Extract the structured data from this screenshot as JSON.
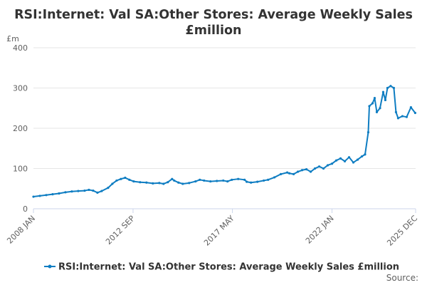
{
  "chart_data": {
    "type": "line",
    "title_lines": [
      "RSI:Internet: Val SA:Other Stores: Average Weekly Sales",
      "£million"
    ],
    "y_unit": "£m",
    "ylim": [
      0,
      400
    ],
    "y_ticks": [
      0,
      100,
      200,
      300,
      400
    ],
    "x_ticks": [
      {
        "label": "2008 JAN",
        "x": 2008.0
      },
      {
        "label": "2012 SEP",
        "x": 2012.67
      },
      {
        "label": "2017 MAY",
        "x": 2017.33
      },
      {
        "label": "2022 JAN",
        "x": 2022.0
      },
      {
        "label": "2025 DEC",
        "x": 2025.92
      }
    ],
    "xlim": [
      2008.0,
      2025.92
    ],
    "legend": "RSI:Internet: Val SA:Other Stores: Average Weekly Sales £million",
    "source": "Source:",
    "series": [
      {
        "name": "RSI:Internet: Val SA:Other Stores: Average Weekly Sales £million",
        "color": "#0e7dc2",
        "points": [
          [
            2008.0,
            30
          ],
          [
            2008.3,
            32
          ],
          [
            2008.6,
            34
          ],
          [
            2008.9,
            36
          ],
          [
            2009.2,
            38
          ],
          [
            2009.5,
            41
          ],
          [
            2009.8,
            43
          ],
          [
            2010.1,
            44
          ],
          [
            2010.4,
            45
          ],
          [
            2010.6,
            47
          ],
          [
            2010.8,
            45
          ],
          [
            2011.0,
            40
          ],
          [
            2011.2,
            44
          ],
          [
            2011.5,
            52
          ],
          [
            2011.7,
            62
          ],
          [
            2011.9,
            70
          ],
          [
            2012.1,
            74
          ],
          [
            2012.3,
            77
          ],
          [
            2012.5,
            72
          ],
          [
            2012.7,
            68
          ],
          [
            2013.0,
            66
          ],
          [
            2013.3,
            65
          ],
          [
            2013.6,
            63
          ],
          [
            2013.9,
            64
          ],
          [
            2014.1,
            62
          ],
          [
            2014.3,
            66
          ],
          [
            2014.5,
            74
          ],
          [
            2014.6,
            70
          ],
          [
            2014.8,
            65
          ],
          [
            2015.0,
            62
          ],
          [
            2015.3,
            64
          ],
          [
            2015.6,
            68
          ],
          [
            2015.8,
            72
          ],
          [
            2016.0,
            70
          ],
          [
            2016.3,
            68
          ],
          [
            2016.6,
            69
          ],
          [
            2016.9,
            70
          ],
          [
            2017.1,
            68
          ],
          [
            2017.3,
            72
          ],
          [
            2017.6,
            74
          ],
          [
            2017.9,
            72
          ],
          [
            2018.0,
            67
          ],
          [
            2018.2,
            65
          ],
          [
            2018.5,
            67
          ],
          [
            2018.8,
            70
          ],
          [
            2019.0,
            72
          ],
          [
            2019.3,
            78
          ],
          [
            2019.6,
            86
          ],
          [
            2019.9,
            90
          ],
          [
            2020.0,
            88
          ],
          [
            2020.2,
            86
          ],
          [
            2020.4,
            92
          ],
          [
            2020.6,
            96
          ],
          [
            2020.8,
            98
          ],
          [
            2021.0,
            92
          ],
          [
            2021.2,
            100
          ],
          [
            2021.4,
            105
          ],
          [
            2021.6,
            100
          ],
          [
            2021.8,
            108
          ],
          [
            2022.0,
            112
          ],
          [
            2022.2,
            120
          ],
          [
            2022.4,
            125
          ],
          [
            2022.6,
            118
          ],
          [
            2022.8,
            128
          ],
          [
            2023.0,
            115
          ],
          [
            2023.2,
            122
          ],
          [
            2023.4,
            130
          ],
          [
            2023.55,
            135
          ],
          [
            2023.7,
            190
          ],
          [
            2023.75,
            255
          ],
          [
            2023.9,
            262
          ],
          [
            2024.0,
            275
          ],
          [
            2024.1,
            240
          ],
          [
            2024.25,
            250
          ],
          [
            2024.4,
            290
          ],
          [
            2024.5,
            270
          ],
          [
            2024.6,
            300
          ],
          [
            2024.75,
            305
          ],
          [
            2024.9,
            300
          ],
          [
            2025.0,
            240
          ],
          [
            2025.1,
            225
          ],
          [
            2025.3,
            230
          ],
          [
            2025.5,
            228
          ],
          [
            2025.7,
            252
          ],
          [
            2025.9,
            238
          ]
        ]
      }
    ]
  }
}
